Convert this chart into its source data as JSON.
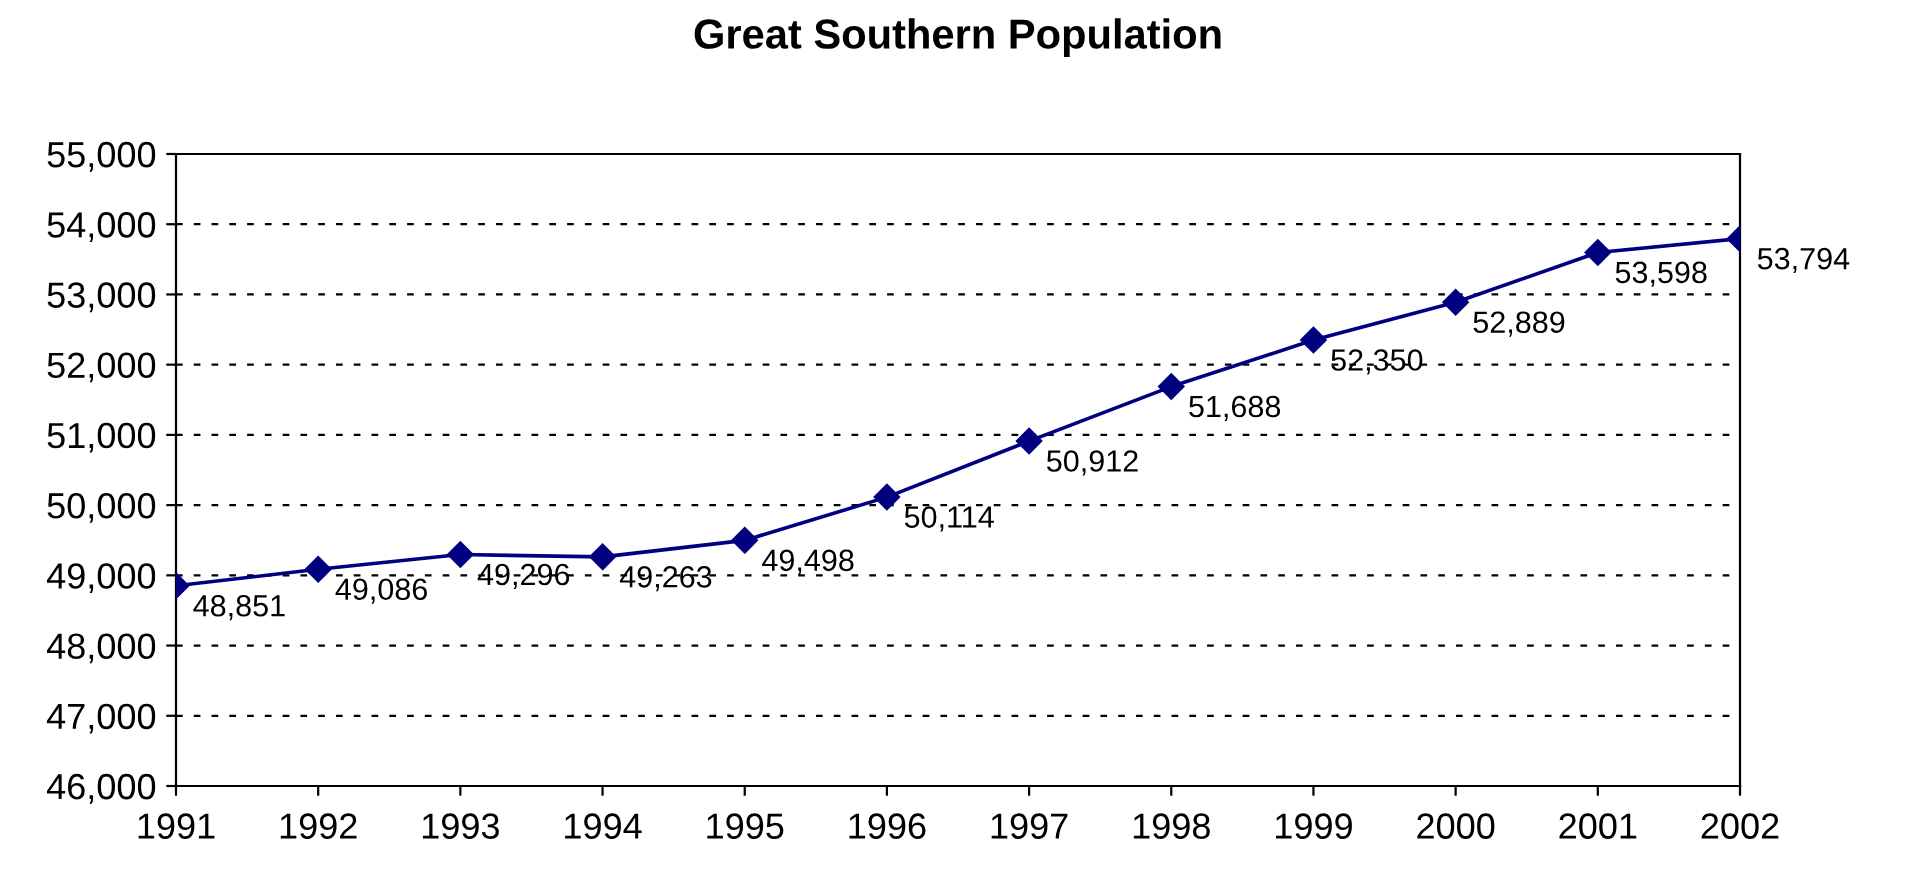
{
  "chart_data": {
    "type": "line",
    "title": "Great Southern Population",
    "x": [
      1991,
      1992,
      1993,
      1994,
      1995,
      1996,
      1997,
      1998,
      1999,
      2000,
      2001,
      2002
    ],
    "series": [
      {
        "color": "#000080",
        "values": [
          48851,
          49086,
          49296,
          49263,
          49498,
          50114,
          50912,
          51688,
          52350,
          52889,
          53598,
          53794
        ],
        "value_labels": [
          "48,851",
          "49,086",
          "49,296",
          "49,263",
          "49,498",
          "50,114",
          "50,912",
          "51,688",
          "52,350",
          "52,889",
          "53,598",
          "53,794"
        ]
      }
    ],
    "xlim": [
      1991,
      2002
    ],
    "xticks": [
      1991,
      1992,
      1993,
      1994,
      1995,
      1996,
      1997,
      1998,
      1999,
      2000,
      2001,
      2002
    ],
    "ylim": [
      46000,
      55000
    ],
    "yticks": [
      {
        "value": 46000,
        "label": "46,000"
      },
      {
        "value": 47000,
        "label": "47,000"
      },
      {
        "value": 48000,
        "label": "48,000"
      },
      {
        "value": 49000,
        "label": "49,000"
      },
      {
        "value": 50000,
        "label": "50,000"
      },
      {
        "value": 51000,
        "label": "51,000"
      },
      {
        "value": 52000,
        "label": "52,000"
      },
      {
        "value": 53000,
        "label": "53,000"
      },
      {
        "value": 54000,
        "label": "54,000"
      },
      {
        "value": 55000,
        "label": "55,000"
      }
    ],
    "grid": "y",
    "marker": "diamond",
    "line_style": "solid",
    "legend": false
  }
}
